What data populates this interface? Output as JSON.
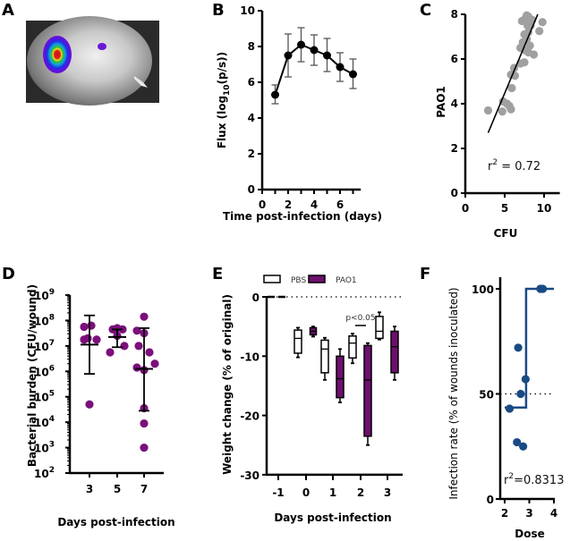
{
  "figure": {
    "panel_labels": [
      "A",
      "B",
      "C",
      "D",
      "E",
      "F"
    ]
  },
  "chart_data": [
    {
      "panel": "A",
      "type": "image",
      "description": "Bioluminescence image of wound with signal overlay (red/yellow/green/blue/purple heat map) on grayscale background"
    },
    {
      "panel": "B",
      "type": "line",
      "title": "",
      "xlabel": "Time post-infection (days)",
      "ylabel": "Flux (log10(p/s))",
      "ylabel_main": "Flux (log",
      "ylabel_sub": "10",
      "ylabel_end": "(p/s))",
      "xlim": [
        0,
        8
      ],
      "ylim": [
        0,
        10
      ],
      "xticks": [
        0,
        2,
        4,
        6
      ],
      "yticks": [
        0,
        2,
        4,
        6,
        8,
        10
      ],
      "x": [
        1,
        2,
        3,
        4,
        5,
        6,
        7
      ],
      "y": [
        5.3,
        7.5,
        8.1,
        7.8,
        7.5,
        6.85,
        6.45
      ],
      "err_low": [
        4.8,
        6.3,
        7.15,
        6.95,
        6.6,
        6.05,
        5.65
      ],
      "err_high": [
        5.85,
        8.7,
        9.05,
        8.65,
        8.45,
        7.65,
        7.3
      ],
      "color": "#000000"
    },
    {
      "panel": "C",
      "type": "scatter",
      "xlabel": "CFU",
      "ylabel": "PAO1",
      "xlim": [
        0,
        12
      ],
      "ylim": [
        0,
        8
      ],
      "xticks": [
        0,
        5,
        10
      ],
      "yticks": [
        0,
        2,
        4,
        6,
        8
      ],
      "points": [
        [
          2.9,
          3.7
        ],
        [
          4.7,
          3.65
        ],
        [
          5.8,
          3.75
        ],
        [
          4.8,
          4.1
        ],
        [
          5.3,
          4.0
        ],
        [
          5.6,
          3.9
        ],
        [
          5.9,
          4.7
        ],
        [
          5.8,
          5.3
        ],
        [
          6.3,
          5.25
        ],
        [
          6.2,
          5.6
        ],
        [
          7.0,
          5.8
        ],
        [
          7.5,
          5.85
        ],
        [
          7.0,
          6.5
        ],
        [
          7.6,
          6.4
        ],
        [
          8.0,
          6.3
        ],
        [
          8.7,
          6.2
        ],
        [
          7.3,
          6.75
        ],
        [
          7.8,
          6.9
        ],
        [
          8.2,
          6.6
        ],
        [
          7.5,
          7.1
        ],
        [
          8.0,
          7.2
        ],
        [
          9.4,
          7.25
        ],
        [
          7.9,
          7.5
        ],
        [
          8.3,
          7.5
        ],
        [
          7.2,
          7.7
        ],
        [
          7.6,
          7.8
        ],
        [
          8.0,
          7.9
        ],
        [
          8.5,
          7.75
        ],
        [
          9.8,
          7.65
        ],
        [
          7.8,
          7.95
        ]
      ],
      "fit_line": {
        "x": [
          2.9,
          9.2
        ],
        "y": [
          2.7,
          8.0
        ]
      },
      "annotation": "r² = 0.72",
      "annotation_base": "r",
      "annotation_sup": "2",
      "annotation_rest": " = 0.72",
      "color": "#a0a0a0"
    },
    {
      "panel": "D",
      "type": "scatter",
      "xlabel": "Days post-infection",
      "ylabel": "Bacterial burden (CFU/wound)",
      "yscale": "log",
      "ylim_log10": [
        2,
        9
      ],
      "yticks": [
        "10²",
        "10³",
        "10⁴",
        "10⁵",
        "10⁶",
        "10⁷",
        "10⁸",
        "10⁹"
      ],
      "categories": [
        "3",
        "5",
        "7"
      ],
      "groups": [
        {
          "day": "3",
          "log10_values": [
            7.75,
            7.8,
            7.25,
            7.3,
            7.25,
            4.7
          ],
          "mean_log10": 7.05,
          "err_low_log10": 5.9,
          "err_high_log10": 8.2
        },
        {
          "day": "5",
          "log10_values": [
            7.65,
            7.7,
            7.65,
            7.4,
            6.75,
            7.0
          ],
          "mean_log10": 7.35,
          "err_low_log10": 6.95,
          "err_high_log10": 7.65
        },
        {
          "day": "7",
          "log10_values": [
            8.15,
            7.6,
            7.5,
            7.0,
            6.75,
            6.3,
            6.15,
            6.05,
            4.55,
            3.95,
            3.0
          ],
          "mean_log10": 6.1,
          "err_low_log10": 4.45,
          "err_high_log10": 7.7
        }
      ],
      "color": "#7b0f7b"
    },
    {
      "panel": "E",
      "type": "box",
      "xlabel": "Days post-infection",
      "ylabel": "Weight change (% of original)",
      "ylim": [
        -30,
        0
      ],
      "yticks": [
        0,
        -10,
        -20,
        -30
      ],
      "categories": [
        "-1",
        "0",
        "1",
        "2",
        "3"
      ],
      "legend": [
        {
          "name": "PBS",
          "color": "#ffffff"
        },
        {
          "name": "PAO1",
          "color": "#6e0f6e"
        }
      ],
      "legend_position": "top",
      "series": [
        {
          "name": "PBS",
          "boxes": [
            {
              "min": 0,
              "q1": 0,
              "median": 0,
              "q3": 0,
              "max": 0
            },
            {
              "min": -10.2,
              "q1": -9.5,
              "median": -7.0,
              "q3": -5.6,
              "max": -5.2
            },
            {
              "min": -14.0,
              "q1": -12.8,
              "median": -8.8,
              "q3": -7.3,
              "max": -6.9
            },
            {
              "min": -11.2,
              "q1": -10.3,
              "median": -7.8,
              "q3": -6.6,
              "max": -6.2
            },
            {
              "min": -7.2,
              "q1": -7.0,
              "median": -5.8,
              "q3": -3.3,
              "max": -2.6
            }
          ]
        },
        {
          "name": "PAO1",
          "boxes": [
            {
              "min": 0,
              "q1": 0,
              "median": 0,
              "q3": 0,
              "max": 0
            },
            {
              "min": -6.7,
              "q1": -6.4,
              "median": -5.8,
              "q3": -5.2,
              "max": -5.0
            },
            {
              "min": -17.8,
              "q1": -17.0,
              "median": -13.8,
              "q3": -10.0,
              "max": -8.8
            },
            {
              "min": -25.0,
              "q1": -23.5,
              "median": -14.0,
              "q3": -8.2,
              "max": -7.8
            },
            {
              "min": -14.0,
              "q1": -12.8,
              "median": -8.4,
              "q3": -5.8,
              "max": -5.0
            }
          ]
        }
      ],
      "reference_line": 0,
      "annotation": "p<0.05",
      "annotation_category": "2"
    },
    {
      "panel": "F",
      "type": "scatter",
      "xlabel": "Dose",
      "ylabel": "Infection rate (% of wounds inoculated)",
      "xlim": [
        2,
        4
      ],
      "ylim": [
        0,
        100
      ],
      "xticks": [
        2,
        3,
        4
      ],
      "yticks": [
        0,
        50,
        100
      ],
      "points": [
        [
          2.2,
          43
        ],
        [
          2.55,
          72
        ],
        [
          2.65,
          50
        ],
        [
          2.85,
          57
        ],
        [
          2.5,
          27
        ],
        [
          2.75,
          25
        ],
        [
          3.45,
          100
        ],
        [
          3.55,
          100
        ]
      ],
      "step_fit": {
        "x": [
          2.0,
          2.87,
          2.87,
          4.0
        ],
        "y": [
          43.5,
          43.5,
          100,
          100
        ]
      },
      "reference_line": 50,
      "annotation": "r²=0.8313",
      "annotation_base": "r",
      "annotation_sup": "2",
      "annotation_rest": "=0.8313",
      "color": "#1a4a85"
    }
  ]
}
